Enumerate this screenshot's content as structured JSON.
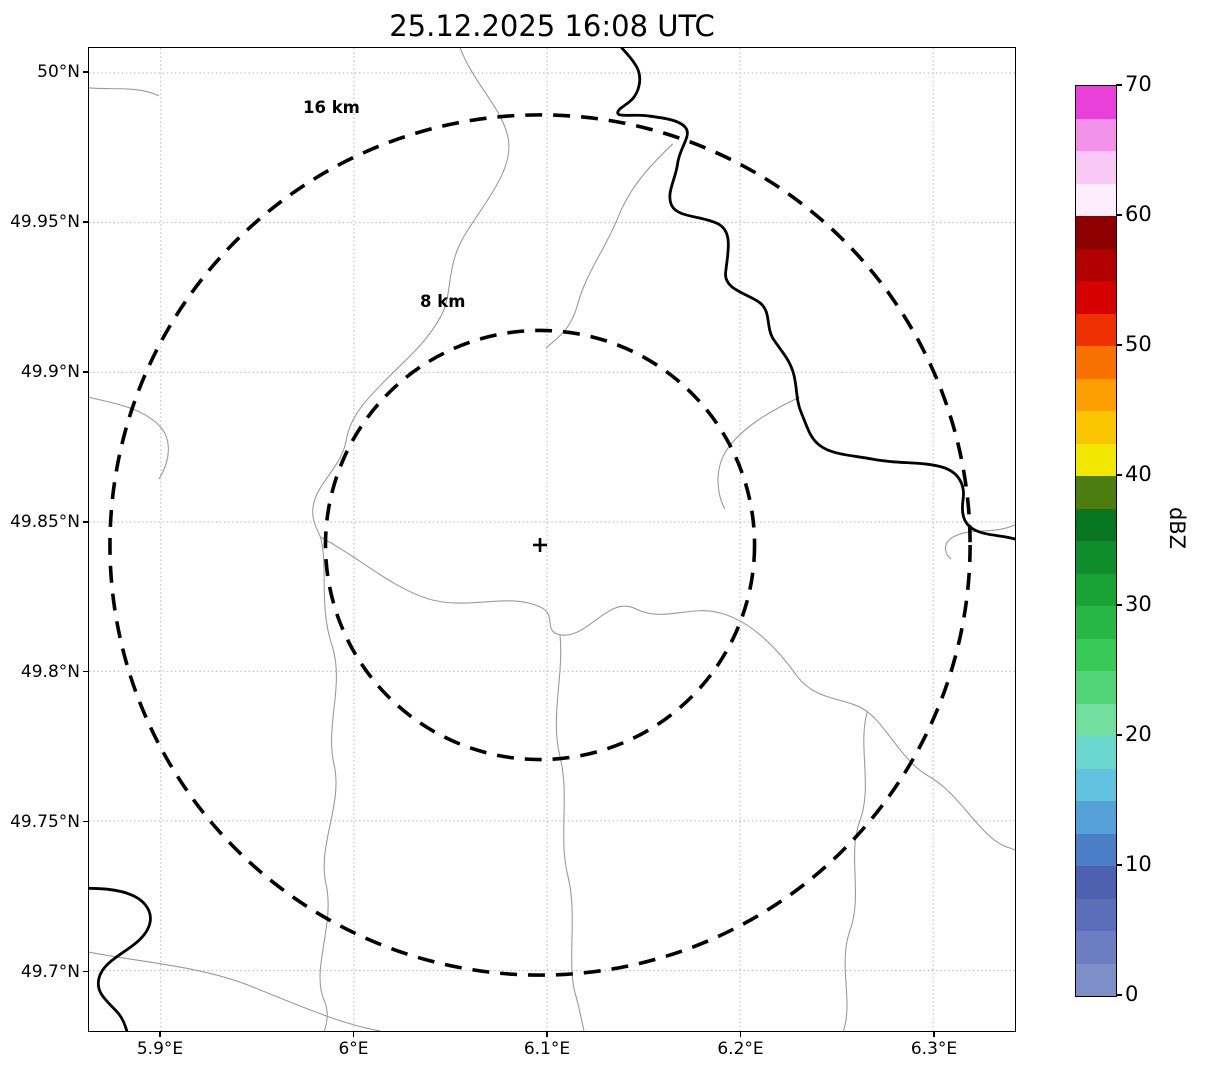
{
  "title": "25.12.2025 16:08 UTC",
  "axes": {
    "x_ticks": [
      "5.9°E",
      "6°E",
      "6.1°E",
      "6.2°E",
      "6.3°E"
    ],
    "y_ticks": [
      "50°N",
      "49.95°N",
      "49.9°N",
      "49.85°N",
      "49.8°N",
      "49.75°N",
      "49.7°N"
    ]
  },
  "map": {
    "center_marker": "+",
    "rings": [
      {
        "label": "16 km",
        "radius_km": 16
      },
      {
        "label": "8 km",
        "radius_km": 8
      }
    ]
  },
  "colorbar": {
    "label": "dBZ",
    "min": 0,
    "max": 70,
    "ticks": [
      "0",
      "10",
      "20",
      "30",
      "40",
      "50",
      "60",
      "70"
    ],
    "segment_step_dbz": 2.5,
    "segments_bottom_to_top": [
      "#7e8ec9",
      "#6c7dc1",
      "#5c6eb9",
      "#4e61b0",
      "#4a7ec6",
      "#55a0d8",
      "#61c3e0",
      "#6bd7cf",
      "#72dfa0",
      "#52d478",
      "#38c957",
      "#27b744",
      "#19a337",
      "#0f8d2c",
      "#067621",
      "#4c7d10",
      "#f2e700",
      "#fbc500",
      "#fc9d00",
      "#f87100",
      "#ee3000",
      "#d60000",
      "#b20000",
      "#8d0000",
      "#fdeefd",
      "#f9c8f5",
      "#f292e9",
      "#e840d9"
    ]
  },
  "chart_data": {
    "type": "map",
    "title": "25.12.2025 16:08 UTC",
    "extent": {
      "lon_ticks": [
        "5.9°E",
        "6°E",
        "6.1°E",
        "6.2°E",
        "6.3°E"
      ],
      "lat_ticks": [
        "50°N",
        "49.95°N",
        "49.9°N",
        "49.85°N",
        "49.8°N",
        "49.75°N",
        "49.7°N"
      ]
    },
    "range_rings_km": [
      8,
      16
    ],
    "colorbar": {
      "label": "dBZ",
      "min": 0,
      "max": 70,
      "ticks": [
        0,
        10,
        20,
        30,
        40,
        50,
        60,
        70
      ]
    },
    "grid": true,
    "legend_position": "right colorbar"
  }
}
